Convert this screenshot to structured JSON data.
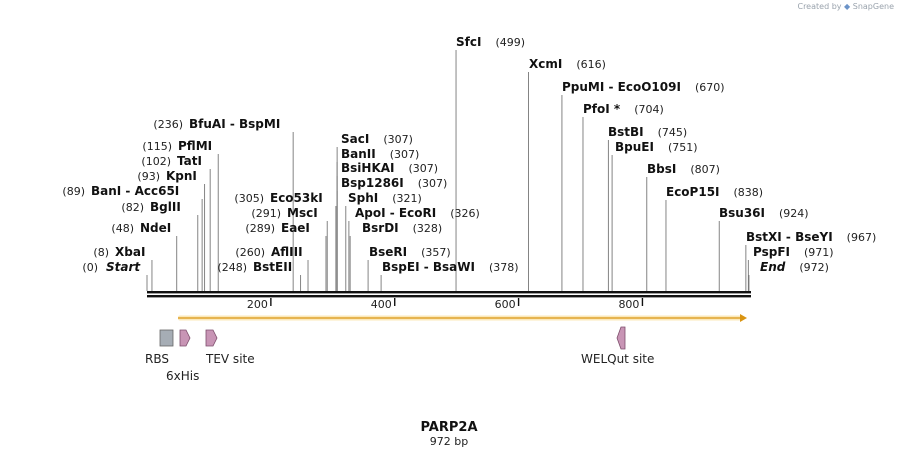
{
  "watermark": {
    "prefix": "Created by",
    "brand": "SnapGene"
  },
  "sequence": {
    "name": "PARP2A",
    "length_label": "972 bp",
    "length": 972
  },
  "ends": [
    {
      "name": "Start",
      "position": 0
    },
    {
      "name": "End",
      "position": 972
    }
  ],
  "ticks": [
    200,
    400,
    600,
    800
  ],
  "enzymes": [
    {
      "names": [
        "XbaI"
      ],
      "position": 8
    },
    {
      "names": [
        "NdeI"
      ],
      "position": 48
    },
    {
      "names": [
        "BglII"
      ],
      "position": 82
    },
    {
      "names": [
        "BanI",
        "Acc65I"
      ],
      "position": 89
    },
    {
      "names": [
        "KpnI"
      ],
      "position": 93
    },
    {
      "names": [
        "TatI"
      ],
      "position": 102
    },
    {
      "names": [
        "PflMI"
      ],
      "position": 115
    },
    {
      "names": [
        "BfuAI",
        "BspMI"
      ],
      "position": 236
    },
    {
      "names": [
        "BstEII"
      ],
      "position": 248
    },
    {
      "names": [
        "AflIII"
      ],
      "position": 260
    },
    {
      "names": [
        "EaeI"
      ],
      "position": 289
    },
    {
      "names": [
        "MscI"
      ],
      "position": 291
    },
    {
      "names": [
        "Eco53kI"
      ],
      "position": 305
    },
    {
      "names": [
        "SacI"
      ],
      "position": 307
    },
    {
      "names": [
        "BanII"
      ],
      "position": 307
    },
    {
      "names": [
        "BsiHKAI"
      ],
      "position": 307
    },
    {
      "names": [
        "Bsp1286I"
      ],
      "position": 307
    },
    {
      "names": [
        "SphI"
      ],
      "position": 321
    },
    {
      "names": [
        "ApoI",
        "EcoRI"
      ],
      "position": 326
    },
    {
      "names": [
        "BsrDI"
      ],
      "position": 328
    },
    {
      "names": [
        "BseRI"
      ],
      "position": 357
    },
    {
      "names": [
        "BspEI",
        "BsaWI"
      ],
      "position": 378
    },
    {
      "names": [
        "SfcI"
      ],
      "position": 499
    },
    {
      "names": [
        "XcmI"
      ],
      "position": 616
    },
    {
      "names": [
        "PpuMI",
        "EcoO109I"
      ],
      "position": 670
    },
    {
      "names": [
        "PfoI *"
      ],
      "position": 704
    },
    {
      "names": [
        "BstBI"
      ],
      "position": 745
    },
    {
      "names": [
        "BpuEI"
      ],
      "position": 751
    },
    {
      "names": [
        "BbsI"
      ],
      "position": 807
    },
    {
      "names": [
        "EcoP15I"
      ],
      "position": 838
    },
    {
      "names": [
        "Bsu36I"
      ],
      "position": 924
    },
    {
      "names": [
        "BstXI",
        "BseYI"
      ],
      "position": 967
    },
    {
      "names": [
        "PspFI"
      ],
      "position": 971
    }
  ],
  "features": [
    {
      "name": "RBS",
      "type": "box",
      "color": "#a6adb5"
    },
    {
      "name": "6xHis",
      "type": "arrow",
      "color": "#c895b5"
    },
    {
      "name": "TEV site",
      "type": "arrow",
      "color": "#c895b5"
    },
    {
      "name": "WELQut site",
      "type": "arrow-left",
      "color": "#c895b5"
    }
  ],
  "orf": {
    "color": "#f5c24a",
    "direction": "forward"
  }
}
